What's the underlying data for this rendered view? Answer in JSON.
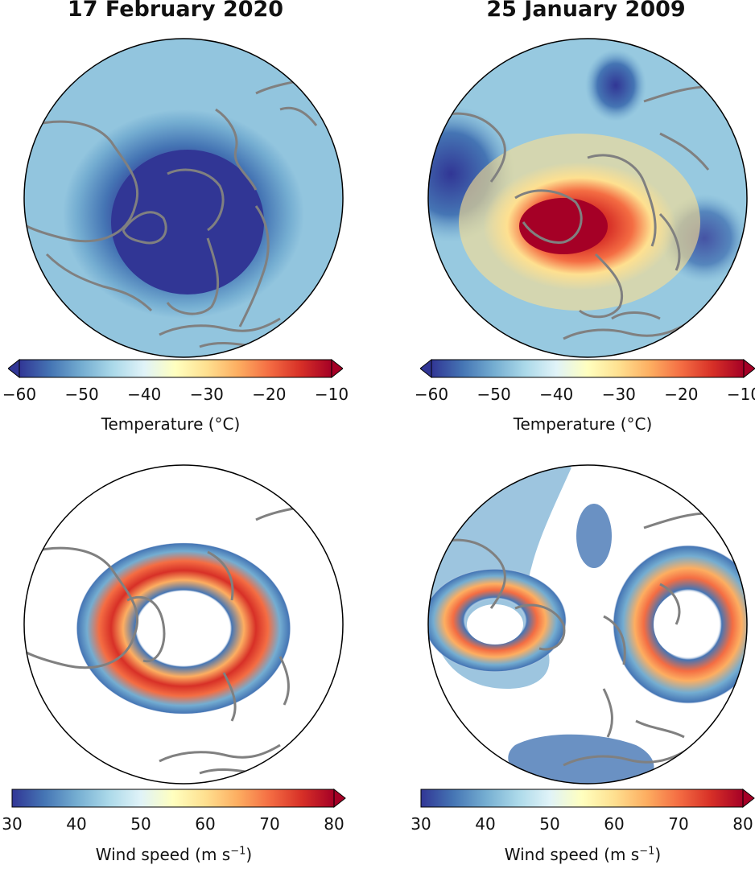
{
  "columns": [
    {
      "title": "17 February 2020"
    },
    {
      "title": "25 January 2009"
    }
  ],
  "temperature_colorbar": {
    "label": "Temperature (°C)",
    "ticks": [
      "−60",
      "−50",
      "−40",
      "−30",
      "−20",
      "−10"
    ],
    "range": [
      -60,
      -10
    ],
    "extend": "both"
  },
  "wind_colorbar": {
    "label_prefix": "Wind speed (m s",
    "label_sup": "−1",
    "label_suffix": ")",
    "ticks": [
      "30",
      "40",
      "50",
      "60",
      "70",
      "80"
    ],
    "range": [
      30,
      80
    ],
    "extend": "max"
  },
  "colormap": [
    "#313695",
    "#4575b4",
    "#74add1",
    "#abd9e9",
    "#e0f3f8",
    "#ffffbf",
    "#fee090",
    "#fdae61",
    "#f46d43",
    "#d73027",
    "#a50026"
  ],
  "coastline_color": "#808080",
  "panels": [
    {
      "row": "temperature",
      "col": 0,
      "description": "Polar stereographic map, cold polar vortex centered over the Arctic"
    },
    {
      "row": "temperature",
      "col": 1,
      "description": "Polar stereographic map, warm anomaly (sudden stratospheric warming)"
    },
    {
      "row": "wind",
      "col": 0,
      "description": "Strong circumpolar wind ring"
    },
    {
      "row": "wind",
      "col": 1,
      "description": "Split vortex, two wind rings"
    }
  ]
}
